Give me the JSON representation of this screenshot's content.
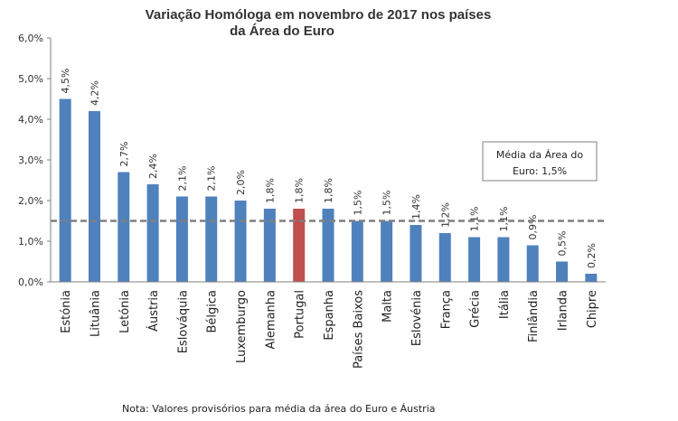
{
  "chart_data": {
    "type": "bar",
    "title_line1": "Variação Homóloga em novembro de 2017 nos países",
    "title_line2": "da Área do Euro",
    "categories": [
      "Estónia",
      "Lituânia",
      "Letónia",
      "Áustria",
      "Eslováquia",
      "Bélgica",
      "Luxemburgo",
      "Alemanha",
      "Portugal",
      "Espanha",
      "Países Baixos",
      "Malta",
      "Eslovénia",
      "França",
      "Grécia",
      "Itália",
      "Finlândia",
      "Irlanda",
      "Chipre"
    ],
    "values": [
      4.5,
      4.2,
      2.7,
      2.4,
      2.1,
      2.1,
      2.0,
      1.8,
      1.8,
      1.8,
      1.5,
      1.5,
      1.4,
      1.2,
      1.1,
      1.1,
      0.9,
      0.5,
      0.2
    ],
    "data_labels": [
      "4,5%",
      "4,2%",
      "2,7%",
      "2,4%",
      "2,1%",
      "2,1%",
      "2,0%",
      "1,8%",
      "1,8%",
      "1,8%",
      "1,5%",
      "1,5%",
      "1,4%",
      "1,2%",
      "1,1%",
      "1,1%",
      "0,9%",
      "0,5%",
      "0,2%"
    ],
    "ylim": [
      0,
      6
    ],
    "yticks": [
      0,
      1,
      2,
      3,
      4,
      5,
      6
    ],
    "ytick_labels": [
      "0,0%",
      "1,0%",
      "2,0%",
      "3,0%",
      "4,0%",
      "5,0%",
      "6,0%"
    ],
    "highlight_category": "Portugal",
    "reference_line": {
      "value": 1.5,
      "label_line1": "Média da Área do",
      "label_line2": "Euro: 1,5%"
    },
    "xlabel": "",
    "ylabel": "",
    "grid": false
  },
  "colors": {
    "bar": "#4f81bd",
    "highlight": "#c0504d",
    "reference_line": "#7f7f7f",
    "axis": "#808080"
  },
  "note": "Nota: Valores provisórios para média da área do Euro e Áustria"
}
